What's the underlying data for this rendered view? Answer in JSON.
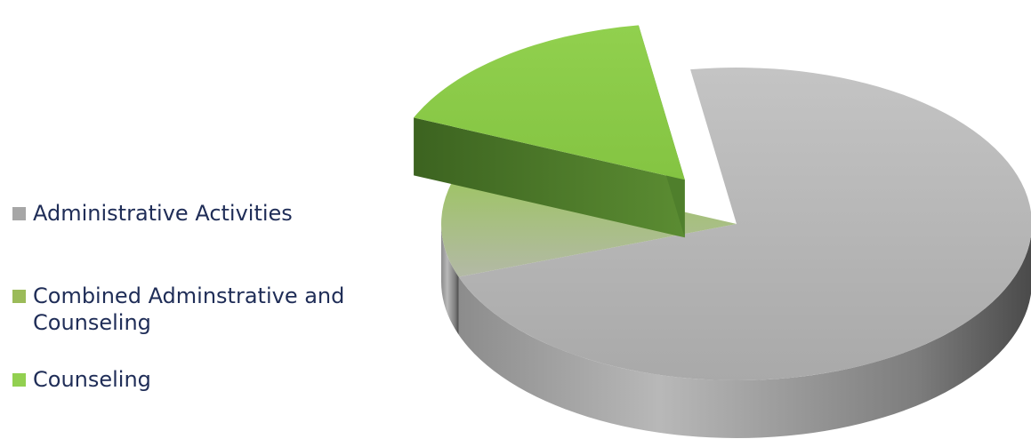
{
  "chart_data": {
    "type": "pie",
    "title": "",
    "three_d": true,
    "exploded_slice": "Counseling",
    "legend_position": "left",
    "series": [
      {
        "name": "Administrative Activities",
        "value": 72,
        "color": "#b3b3b3"
      },
      {
        "name": "Combined Adminstrative and Counseling",
        "value": 12,
        "color": "#a3c46e"
      },
      {
        "name": "Counseling",
        "value": 16,
        "color": "#8ec64f"
      }
    ],
    "legend": [
      {
        "label": "Administrative Activities",
        "color": "#a6a6a6"
      },
      {
        "label": "Combined Adminstrative and Counseling",
        "color": "#9bbb59"
      },
      {
        "label": "Counseling",
        "color": "#92d050"
      }
    ]
  }
}
